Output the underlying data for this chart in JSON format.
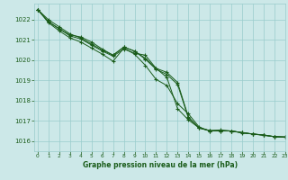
{
  "title": "Graphe pression niveau de la mer (hPa)",
  "bg_color": "#cce8e8",
  "grid_color": "#99cccc",
  "line_color": "#1a5c1a",
  "xlim": [
    -0.3,
    23
  ],
  "ylim": [
    1015.5,
    1022.8
  ],
  "yticks": [
    1016,
    1017,
    1018,
    1019,
    1020,
    1021,
    1022
  ],
  "xticks": [
    0,
    1,
    2,
    3,
    4,
    5,
    6,
    7,
    8,
    9,
    10,
    11,
    12,
    13,
    14,
    15,
    16,
    17,
    18,
    19,
    20,
    21,
    22,
    23
  ],
  "series": [
    [
      1022.5,
      1021.9,
      1021.55,
      1021.2,
      1021.05,
      1020.75,
      1020.45,
      1020.2,
      1020.55,
      1020.35,
      1020.25,
      1019.6,
      1019.15,
      1017.6,
      1017.05,
      1016.65,
      1016.5,
      1016.5,
      1016.5,
      1016.4,
      1016.35,
      1016.3,
      1016.22,
      1016.2
    ],
    [
      1022.5,
      1022.0,
      1021.65,
      1021.3,
      1021.1,
      1020.8,
      1020.5,
      1020.25,
      1020.65,
      1020.45,
      1020.05,
      1019.55,
      1019.3,
      1018.8,
      1017.15,
      1016.65,
      1016.52,
      1016.52,
      1016.5,
      1016.42,
      1016.35,
      1016.3,
      1016.22,
      1016.2
    ],
    [
      1022.5,
      1021.9,
      1021.55,
      1021.25,
      1021.15,
      1020.9,
      1020.55,
      1020.25,
      1020.65,
      1020.45,
      1020.1,
      1019.6,
      1019.4,
      1018.9,
      1017.2,
      1016.65,
      1016.52,
      1016.55,
      1016.5,
      1016.42,
      1016.35,
      1016.28,
      1016.22,
      1016.2
    ],
    [
      1022.5,
      1021.85,
      1021.45,
      1021.1,
      1020.9,
      1020.6,
      1020.3,
      1019.95,
      1020.6,
      1020.3,
      1019.75,
      1019.05,
      1018.75,
      1017.85,
      1017.35,
      1016.7,
      1016.5,
      1016.5,
      1016.5,
      1016.42,
      1016.35,
      1016.3,
      1016.22,
      1016.2
    ]
  ]
}
